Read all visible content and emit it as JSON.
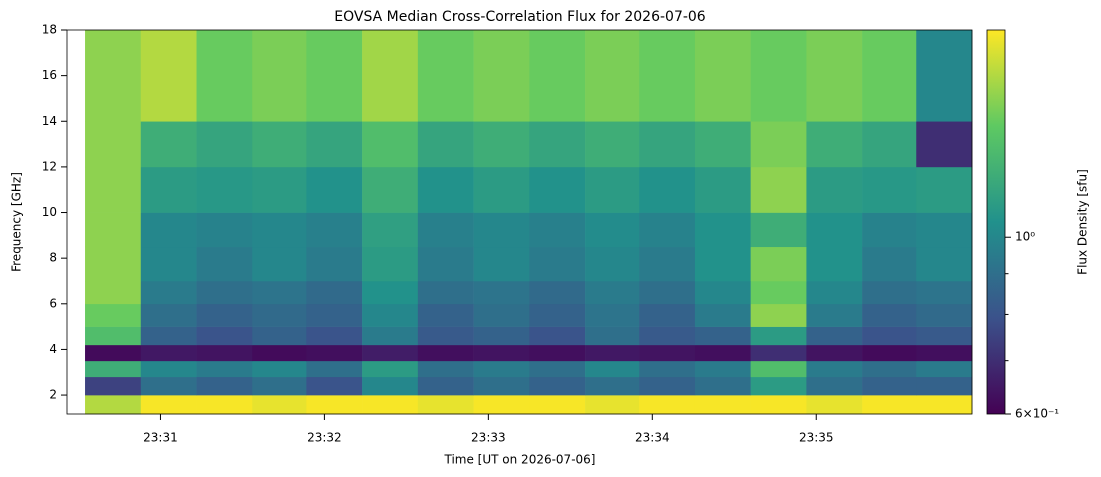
{
  "chart_data": {
    "type": "heatmap",
    "title": "EOVSA Median Cross-Correlation Flux for 2026-07-06",
    "x_label": "Time [UT on 2026-07-06]",
    "y_label": "Frequency [GHz]",
    "colorbar_label": "Flux Density [sfu]",
    "colormap": "viridis",
    "zscale": "log",
    "xlim": [
      1410.43,
      1415.95
    ],
    "xticks": [
      {
        "value": 1411,
        "label": "23:31"
      },
      {
        "value": 1412,
        "label": "23:32"
      },
      {
        "value": 1413,
        "label": "23:33"
      },
      {
        "value": 1414,
        "label": "23:34"
      },
      {
        "value": 1415,
        "label": "23:35"
      }
    ],
    "ylim": [
      1.17,
      18
    ],
    "yticks": [
      2,
      4,
      6,
      8,
      10,
      12,
      14,
      16,
      18
    ],
    "zlim": [
      0.6,
      1.82
    ],
    "zticks": [
      {
        "value": 0.6,
        "label": "6×10⁻¹"
      },
      {
        "value": 1,
        "label": "10⁰"
      }
    ],
    "zminorticks": [
      0.7,
      0.8,
      0.9
    ],
    "xbins": [
      1410.54,
      1410.88,
      1411.22,
      1411.56,
      1411.89,
      1412.23,
      1412.57,
      1412.91,
      1413.25,
      1413.59,
      1413.92,
      1414.26,
      1414.6,
      1414.94,
      1415.28,
      1415.61,
      1415.95
    ],
    "ybins": [
      1.17,
      2,
      2.8,
      3.5,
      4.2,
      5,
      6,
      7,
      8.5,
      10,
      12,
      14,
      18
    ],
    "z": [
      [
        1.6,
        1.8,
        1.8,
        1.75,
        1.8,
        1.8,
        1.75,
        1.8,
        1.8,
        1.75,
        1.8,
        1.8,
        1.8,
        1.75,
        1.8,
        1.8
      ],
      [
        0.75,
        0.9,
        0.85,
        0.9,
        0.8,
        1.0,
        0.85,
        0.9,
        0.85,
        0.9,
        0.85,
        0.9,
        1.1,
        0.9,
        0.85,
        0.85
      ],
      [
        1.2,
        1.0,
        0.95,
        1.0,
        0.9,
        1.1,
        0.9,
        0.95,
        0.9,
        1.0,
        0.9,
        0.95,
        1.3,
        0.95,
        0.9,
        0.95
      ],
      [
        0.62,
        0.65,
        0.64,
        0.62,
        0.63,
        0.66,
        0.63,
        0.64,
        0.63,
        0.65,
        0.64,
        0.63,
        0.7,
        0.64,
        0.62,
        0.63
      ],
      [
        1.3,
        0.85,
        0.8,
        0.85,
        0.8,
        0.95,
        0.82,
        0.85,
        0.8,
        0.9,
        0.82,
        0.85,
        1.1,
        0.85,
        0.8,
        0.82
      ],
      [
        1.4,
        0.9,
        0.85,
        0.88,
        0.85,
        1.0,
        0.85,
        0.9,
        0.85,
        0.92,
        0.85,
        0.95,
        1.5,
        0.95,
        0.85,
        0.88
      ],
      [
        1.5,
        0.95,
        0.9,
        0.92,
        0.88,
        1.05,
        0.9,
        0.92,
        0.88,
        0.95,
        0.9,
        1.0,
        1.4,
        1.0,
        0.9,
        0.92
      ],
      [
        1.5,
        1.0,
        0.95,
        1.0,
        0.95,
        1.1,
        0.95,
        1.0,
        0.95,
        1.0,
        0.95,
        1.05,
        1.45,
        1.05,
        0.95,
        1.0
      ],
      [
        1.5,
        1.0,
        0.98,
        1.0,
        0.97,
        1.12,
        0.97,
        1.0,
        0.97,
        1.02,
        0.98,
        1.05,
        1.2,
        1.05,
        0.98,
        1.0
      ],
      [
        1.5,
        1.1,
        1.08,
        1.1,
        1.05,
        1.2,
        1.05,
        1.1,
        1.05,
        1.1,
        1.05,
        1.1,
        1.5,
        1.1,
        1.08,
        1.1
      ],
      [
        1.5,
        1.2,
        1.15,
        1.2,
        1.15,
        1.3,
        1.15,
        1.2,
        1.15,
        1.2,
        1.15,
        1.2,
        1.45,
        1.2,
        1.15,
        0.7
      ],
      [
        1.5,
        1.6,
        1.4,
        1.45,
        1.4,
        1.55,
        1.4,
        1.45,
        1.4,
        1.45,
        1.4,
        1.45,
        1.4,
        1.45,
        1.4,
        1.0
      ]
    ]
  }
}
